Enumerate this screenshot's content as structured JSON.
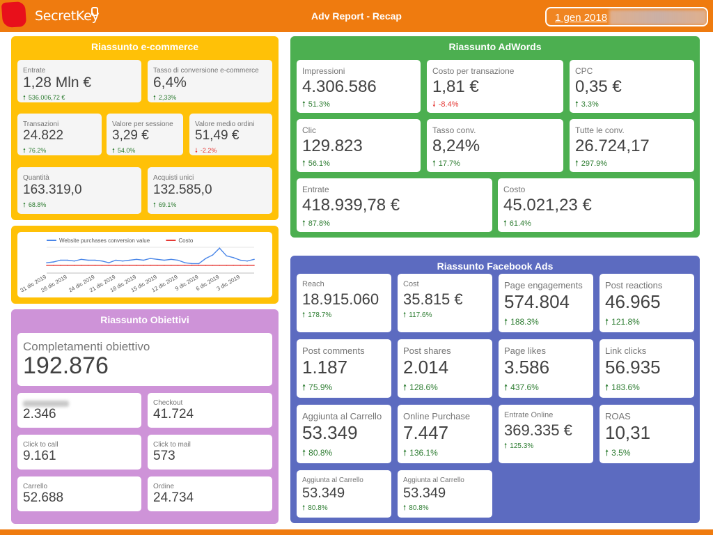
{
  "header": {
    "brand": "SecretKey",
    "title": "Adv Report - Recap",
    "date": "1 gen 2018"
  },
  "colors": {
    "orange": "#ef7b0f",
    "ecommerce": "#ffc107",
    "adwords": "#4caf50",
    "facebook": "#5c6bc0",
    "obiettivi": "#ce93d8",
    "up": "#2e7d32",
    "down": "#e53935"
  },
  "ecommerce": {
    "title": "Riassunto e-commerce",
    "cards": [
      {
        "label": "Entrate",
        "value": "1,28 Mln €",
        "delta": "536.006,72 €",
        "dir": "up"
      },
      {
        "label": "Tasso di conversione e-commerce",
        "value": "6,4%",
        "delta": "2,33%",
        "dir": "up"
      },
      {
        "label": "Transazioni",
        "value": "24.822",
        "delta": "76.2%",
        "dir": "up"
      },
      {
        "label": "Valore per sessione",
        "value": "3,29 €",
        "delta": "54.0%",
        "dir": "up"
      },
      {
        "label": "Valore medio ordini",
        "value": "51,49 €",
        "delta": "-2.2%",
        "dir": "down"
      },
      {
        "label": "Quantità",
        "value": "163.319,0",
        "delta": "68.8%",
        "dir": "up"
      },
      {
        "label": "Acquisti unici",
        "value": "132.585,0",
        "delta": "69.1%",
        "dir": "up"
      }
    ]
  },
  "chart_data": {
    "type": "line",
    "x": [
      "31 dic 2019",
      "30 dic 2019",
      "29 dic 2019",
      "28 dic 2019",
      "27 dic 2019",
      "26 dic 2019",
      "25 dic 2019",
      "24 dic 2019",
      "23 dic 2019",
      "22 dic 2019",
      "21 dic 2019",
      "20 dic 2019",
      "19 dic 2019",
      "18 dic 2019",
      "17 dic 2019",
      "16 dic 2019",
      "15 dic 2019",
      "14 dic 2019",
      "13 dic 2019",
      "12 dic 2019",
      "11 dic 2019",
      "10 dic 2019",
      "9 dic 2019",
      "8 dic 2019",
      "7 dic 2019",
      "6 dic 2019",
      "5 dic 2019",
      "4 dic 2019",
      "3 dic 2019",
      "2 dic 2019",
      "1 dic 2019"
    ],
    "x_tick_labels": [
      "31 dic 2019",
      "28 dic 2019",
      "24 dic 2019",
      "21 dic 2019",
      "18 dic 2019",
      "15 dic 2019",
      "12 dic 2019",
      "9 dic 2019",
      "6 dic 2019",
      "3 dic 2019"
    ],
    "series": [
      {
        "name": "Website purchases conversion value",
        "color": "#4a86e8",
        "values": [
          12,
          13,
          15,
          15,
          14,
          16,
          15,
          15,
          14,
          12,
          15,
          14,
          15,
          16,
          15,
          17,
          16,
          15,
          16,
          15,
          12,
          11,
          11,
          17,
          21,
          29,
          20,
          18,
          15,
          14,
          16
        ]
      },
      {
        "name": "Costo",
        "color": "#e53935",
        "values": [
          9,
          9,
          9,
          9,
          9,
          9,
          9,
          9,
          9,
          9,
          9,
          9,
          9,
          9,
          9,
          9,
          9,
          9,
          9,
          9,
          9,
          9,
          9,
          9,
          9,
          9,
          9,
          9,
          9,
          9,
          9
        ]
      }
    ],
    "ylim": [
      0,
      30
    ],
    "legend": "top"
  },
  "obiettivi": {
    "title": "Riassunto Obiettivi",
    "main": {
      "label": "Completamenti obiettivo",
      "value": "192.876"
    },
    "cards": [
      {
        "label": "",
        "value": "2.346"
      },
      {
        "label": "Checkout",
        "value": "41.724"
      },
      {
        "label": "Click to call",
        "value": "9.161"
      },
      {
        "label": "Click to mail",
        "value": "573"
      },
      {
        "label": "Carrello",
        "value": "52.688"
      },
      {
        "label": "Ordine",
        "value": "24.734"
      }
    ]
  },
  "adwords": {
    "title": "Riassunto AdWords",
    "cards": [
      {
        "label": "Impressioni",
        "value": "4.306.586",
        "delta": "51.3%",
        "dir": "up"
      },
      {
        "label": "Costo per transazione",
        "value": "1,81 €",
        "delta": "-8.4%",
        "dir": "down"
      },
      {
        "label": "CPC",
        "value": "0,35 €",
        "delta": "3.3%",
        "dir": "up"
      },
      {
        "label": "Clic",
        "value": "129.823",
        "delta": "56.1%",
        "dir": "up"
      },
      {
        "label": "Tasso conv.",
        "value": "8,24%",
        "delta": "17.7%",
        "dir": "up"
      },
      {
        "label": "Tutte le conv.",
        "value": "26.724,17",
        "delta": "297.9%",
        "dir": "up"
      },
      {
        "label": "Entrate",
        "value": "418.939,78 €",
        "delta": "87.8%",
        "dir": "up"
      },
      {
        "label": "Costo",
        "value": "45.021,23 €",
        "delta": "61.4%",
        "dir": "up"
      }
    ]
  },
  "facebook": {
    "title": "Riassunto Facebook Ads",
    "cards": [
      {
        "label": "Reach",
        "value": "18.915.060",
        "delta": "178.7%",
        "dir": "up"
      },
      {
        "label": "Cost",
        "value": "35.815 €",
        "delta": "117.6%",
        "dir": "up"
      },
      {
        "label": "Page engagements",
        "value": "574.804",
        "delta": "188.3%",
        "dir": "up"
      },
      {
        "label": "Post reactions",
        "value": "46.965",
        "delta": "121.8%",
        "dir": "up"
      },
      {
        "label": "Post comments",
        "value": "1.187",
        "delta": "75.9%",
        "dir": "up"
      },
      {
        "label": "Post shares",
        "value": "2.014",
        "delta": "128.6%",
        "dir": "up"
      },
      {
        "label": "Page likes",
        "value": "3.586",
        "delta": "437.6%",
        "dir": "up"
      },
      {
        "label": "Link clicks",
        "value": "56.935",
        "delta": "183.6%",
        "dir": "up"
      },
      {
        "label": "Aggiunta al Carrello",
        "value": "53.349",
        "delta": "80.8%",
        "dir": "up"
      },
      {
        "label": "Online Purchase",
        "value": "7.447",
        "delta": "136.1%",
        "dir": "up"
      },
      {
        "label": "Entrate Online",
        "value": "369.335 €",
        "delta": "125.3%",
        "dir": "up"
      },
      {
        "label": "ROAS",
        "value": "10,31",
        "delta": "3.5%",
        "dir": "up"
      },
      {
        "label": "Aggiunta al Carrello",
        "value": "53.349",
        "delta": "80.8%",
        "dir": "up"
      },
      {
        "label": "Aggiunta al Carrello",
        "value": "53.349",
        "delta": "80.8%",
        "dir": "up"
      }
    ]
  }
}
